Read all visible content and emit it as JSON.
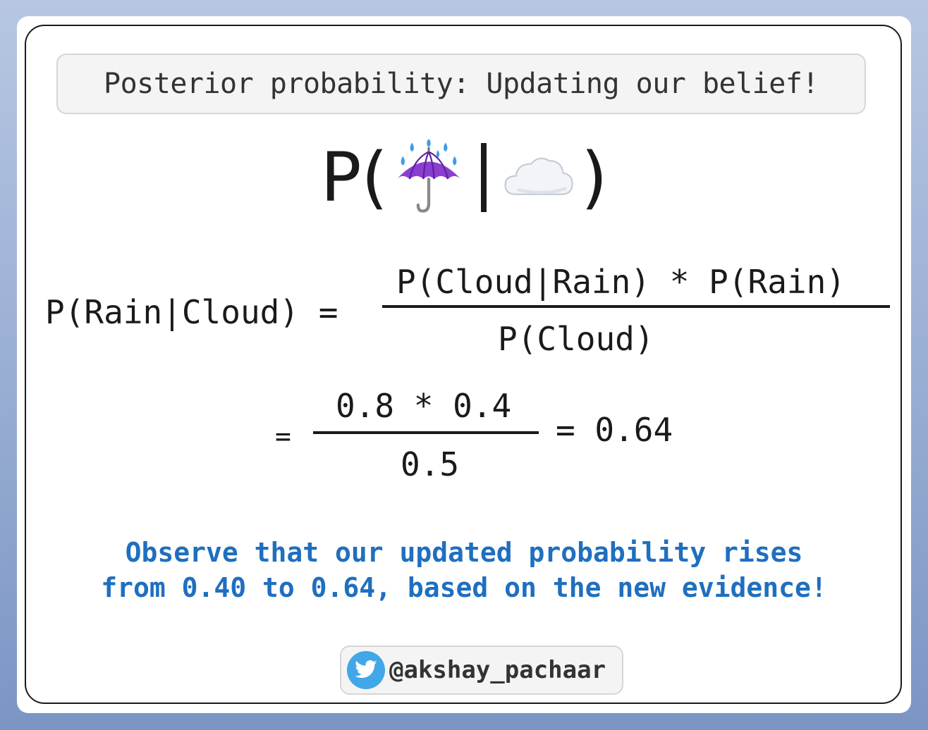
{
  "title": "Posterior probability: Updating our belief!",
  "headline": {
    "prefix": "P(",
    "event_icon": "umbrella-with-rain-icon",
    "separator": "|",
    "evidence_icon": "cloud-icon",
    "suffix": ")"
  },
  "formula": {
    "lhs": "P(Rain|Cloud) =",
    "numerator": "P(Cloud|Rain) * P(Rain)",
    "denominator": "P(Cloud)"
  },
  "computation": {
    "equals_sign": "=",
    "numerator": "0.8 * 0.4",
    "denominator": "0.5",
    "result": "= 0.64"
  },
  "note": {
    "line1": "Observe that our updated probability rises",
    "line2": "from 0.40 to 0.64, based on the new evidence!"
  },
  "footer": {
    "icon": "twitter-bird-icon",
    "handle": "@akshay_pachaar"
  },
  "colors": {
    "note_text": "#1f6fbf",
    "twitter_blue": "#42a7e8"
  }
}
